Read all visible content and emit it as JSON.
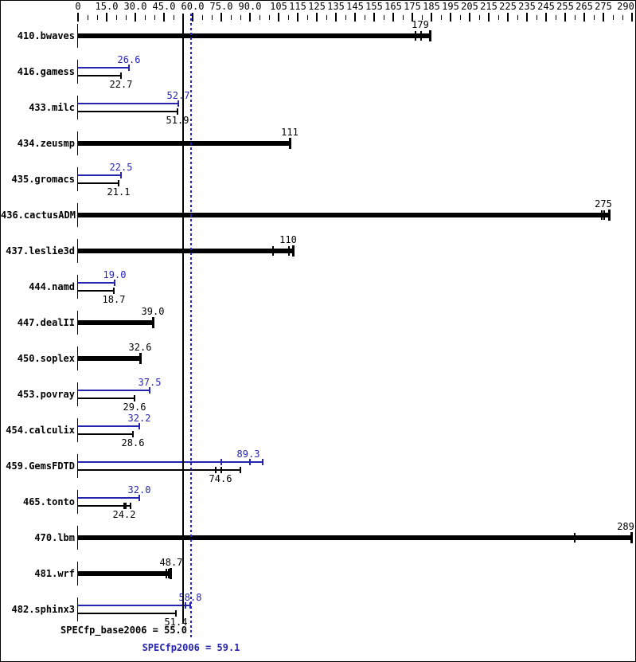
{
  "colors": {
    "base": "#000000",
    "peak": "#2525b0",
    "peak_mean_line": "#2222cc",
    "background": "#ffffff"
  },
  "summary": {
    "base_label": "SPECfp_base2006 = 55.0",
    "base_value": 55.0,
    "peak_label": "SPECfp2006 = 59.1",
    "peak_value": 59.1
  },
  "chart_data": {
    "type": "bar",
    "orientation": "horizontal",
    "title": "",
    "xlabel": "",
    "ylabel": "",
    "x_range": [
      0,
      290
    ],
    "grid": false,
    "legend": "none",
    "series_meta": [
      {
        "name": "base (SPECfp_base2006)",
        "color": "#000000",
        "style": "thick bar when only base, thin bar below peak"
      },
      {
        "name": "peak (SPECfp2006)",
        "color": "#2525b0",
        "style": "thin bar above base"
      }
    ],
    "x_axis_ticks": [
      {
        "value": 0,
        "label": "0"
      },
      {
        "value": 15,
        "label": "15.0"
      },
      {
        "value": 30,
        "label": "30.0"
      },
      {
        "value": 45,
        "label": "45.0"
      },
      {
        "value": 60,
        "label": "60.0"
      },
      {
        "value": 75,
        "label": "75.0"
      },
      {
        "value": 90,
        "label": "90.0"
      },
      {
        "value": 105,
        "label": "105"
      },
      {
        "value": 115,
        "label": "115"
      },
      {
        "value": 125,
        "label": "125"
      },
      {
        "value": 135,
        "label": "135"
      },
      {
        "value": 145,
        "label": "145"
      },
      {
        "value": 155,
        "label": "155"
      },
      {
        "value": 165,
        "label": "165"
      },
      {
        "value": 175,
        "label": "175"
      },
      {
        "value": 185,
        "label": "185"
      },
      {
        "value": 195,
        "label": "195"
      },
      {
        "value": 205,
        "label": "205"
      },
      {
        "value": 215,
        "label": "215"
      },
      {
        "value": 225,
        "label": "225"
      },
      {
        "value": 235,
        "label": "235"
      },
      {
        "value": 245,
        "label": "245"
      },
      {
        "value": 255,
        "label": "255"
      },
      {
        "value": 265,
        "label": "265"
      },
      {
        "value": 275,
        "label": "275"
      },
      {
        "value": 290,
        "label": "290"
      }
    ],
    "minor_tick_step": 5,
    "benchmarks": [
      {
        "name": "410.bwaves",
        "base": {
          "value": 179,
          "label": "179",
          "end": 184,
          "marks": [
            176.5,
            179.5
          ]
        },
        "peak": null
      },
      {
        "name": "416.gamess",
        "base": {
          "value": 22.7,
          "label": "22.7"
        },
        "peak": {
          "value": 26.6,
          "label": "26.6"
        }
      },
      {
        "name": "433.milc",
        "base": {
          "value": 51.9,
          "label": "51.9"
        },
        "peak": {
          "value": 52.7,
          "label": "52.7"
        }
      },
      {
        "name": "434.zeusmp",
        "base": {
          "value": 111,
          "label": "111"
        },
        "peak": null
      },
      {
        "name": "435.gromacs",
        "base": {
          "value": 21.1,
          "label": "21.1"
        },
        "peak": {
          "value": 22.5,
          "label": "22.5"
        }
      },
      {
        "name": "436.cactusADM",
        "base": {
          "value": 275,
          "label": "275",
          "end": 278,
          "marks": [
            274,
            275.5
          ]
        },
        "peak": null
      },
      {
        "name": "437.leslie3d",
        "base": {
          "value": 110,
          "label": "110",
          "end": 112.5,
          "marks": [
            102,
            110.5
          ]
        },
        "peak": null
      },
      {
        "name": "444.namd",
        "base": {
          "value": 18.7,
          "label": "18.7"
        },
        "peak": {
          "value": 19.0,
          "label": "19.0"
        }
      },
      {
        "name": "447.dealII",
        "base": {
          "value": 39.0,
          "label": "39.0"
        },
        "peak": null
      },
      {
        "name": "450.soplex",
        "base": {
          "value": 32.6,
          "label": "32.6"
        },
        "peak": null
      },
      {
        "name": "453.povray",
        "base": {
          "value": 29.6,
          "label": "29.6"
        },
        "peak": {
          "value": 37.5,
          "label": "37.5"
        }
      },
      {
        "name": "454.calculix",
        "base": {
          "value": 28.6,
          "label": "28.6"
        },
        "peak": {
          "value": 32.2,
          "label": "32.2"
        }
      },
      {
        "name": "459.GemsFDTD",
        "base": {
          "value": 74.6,
          "label": "74.6",
          "end": 85,
          "marks": [
            72,
            75
          ]
        },
        "peak": {
          "value": 89.3,
          "label": "89.3",
          "end": 96.5,
          "marks": [
            75,
            90
          ]
        }
      },
      {
        "name": "465.tonto",
        "base": {
          "value": 24.2,
          "label": "24.2",
          "end": 27.5,
          "marks": [
            24.2,
            25.2
          ]
        },
        "peak": {
          "value": 32.0,
          "label": "32.0"
        }
      },
      {
        "name": "470.lbm",
        "base": {
          "value": 289,
          "label": "289",
          "end": 289.5,
          "marks": [
            260
          ]
        },
        "peak": null
      },
      {
        "name": "481.wrf",
        "base": {
          "value": 48.7,
          "label": "48.7",
          "end": 48.5,
          "marks": [
            46.3,
            47.6
          ]
        },
        "peak": null
      },
      {
        "name": "482.sphinx3",
        "base": {
          "value": 51.4,
          "label": "51.4"
        },
        "peak": {
          "value": 58.8,
          "label": "58.8",
          "end": 58.8,
          "marks": [
            54.8,
            56.3
          ]
        }
      }
    ]
  }
}
